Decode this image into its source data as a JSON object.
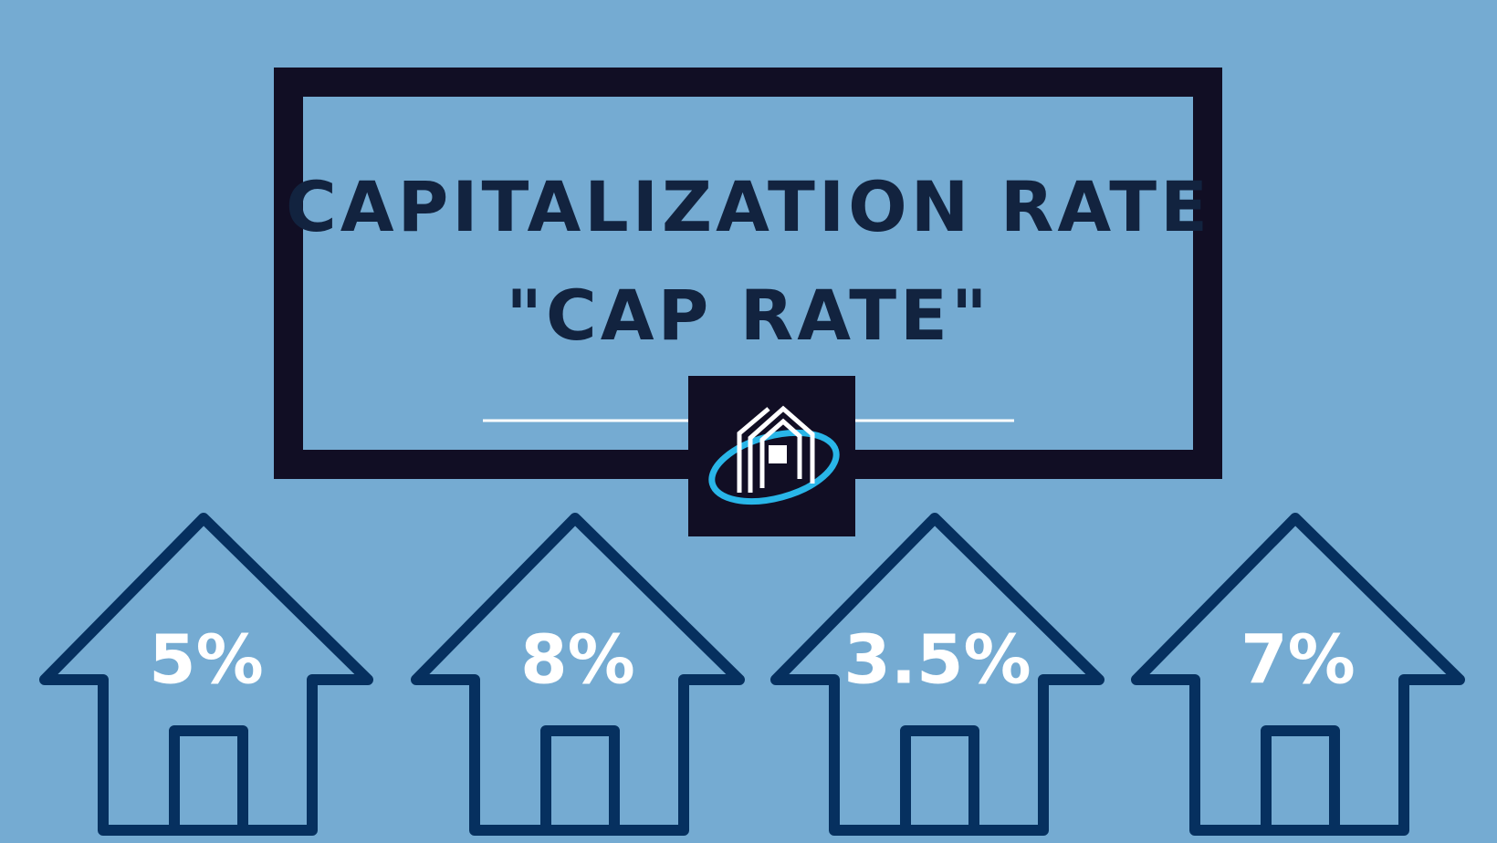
{
  "title": {
    "lines": [
      "CAPITALIZATION RATE",
      "\"CAP RATE\""
    ]
  },
  "houses": [
    {
      "label": "5%"
    },
    {
      "label": "8%"
    },
    {
      "label": "3.5%"
    },
    {
      "label": "7%"
    }
  ]
}
